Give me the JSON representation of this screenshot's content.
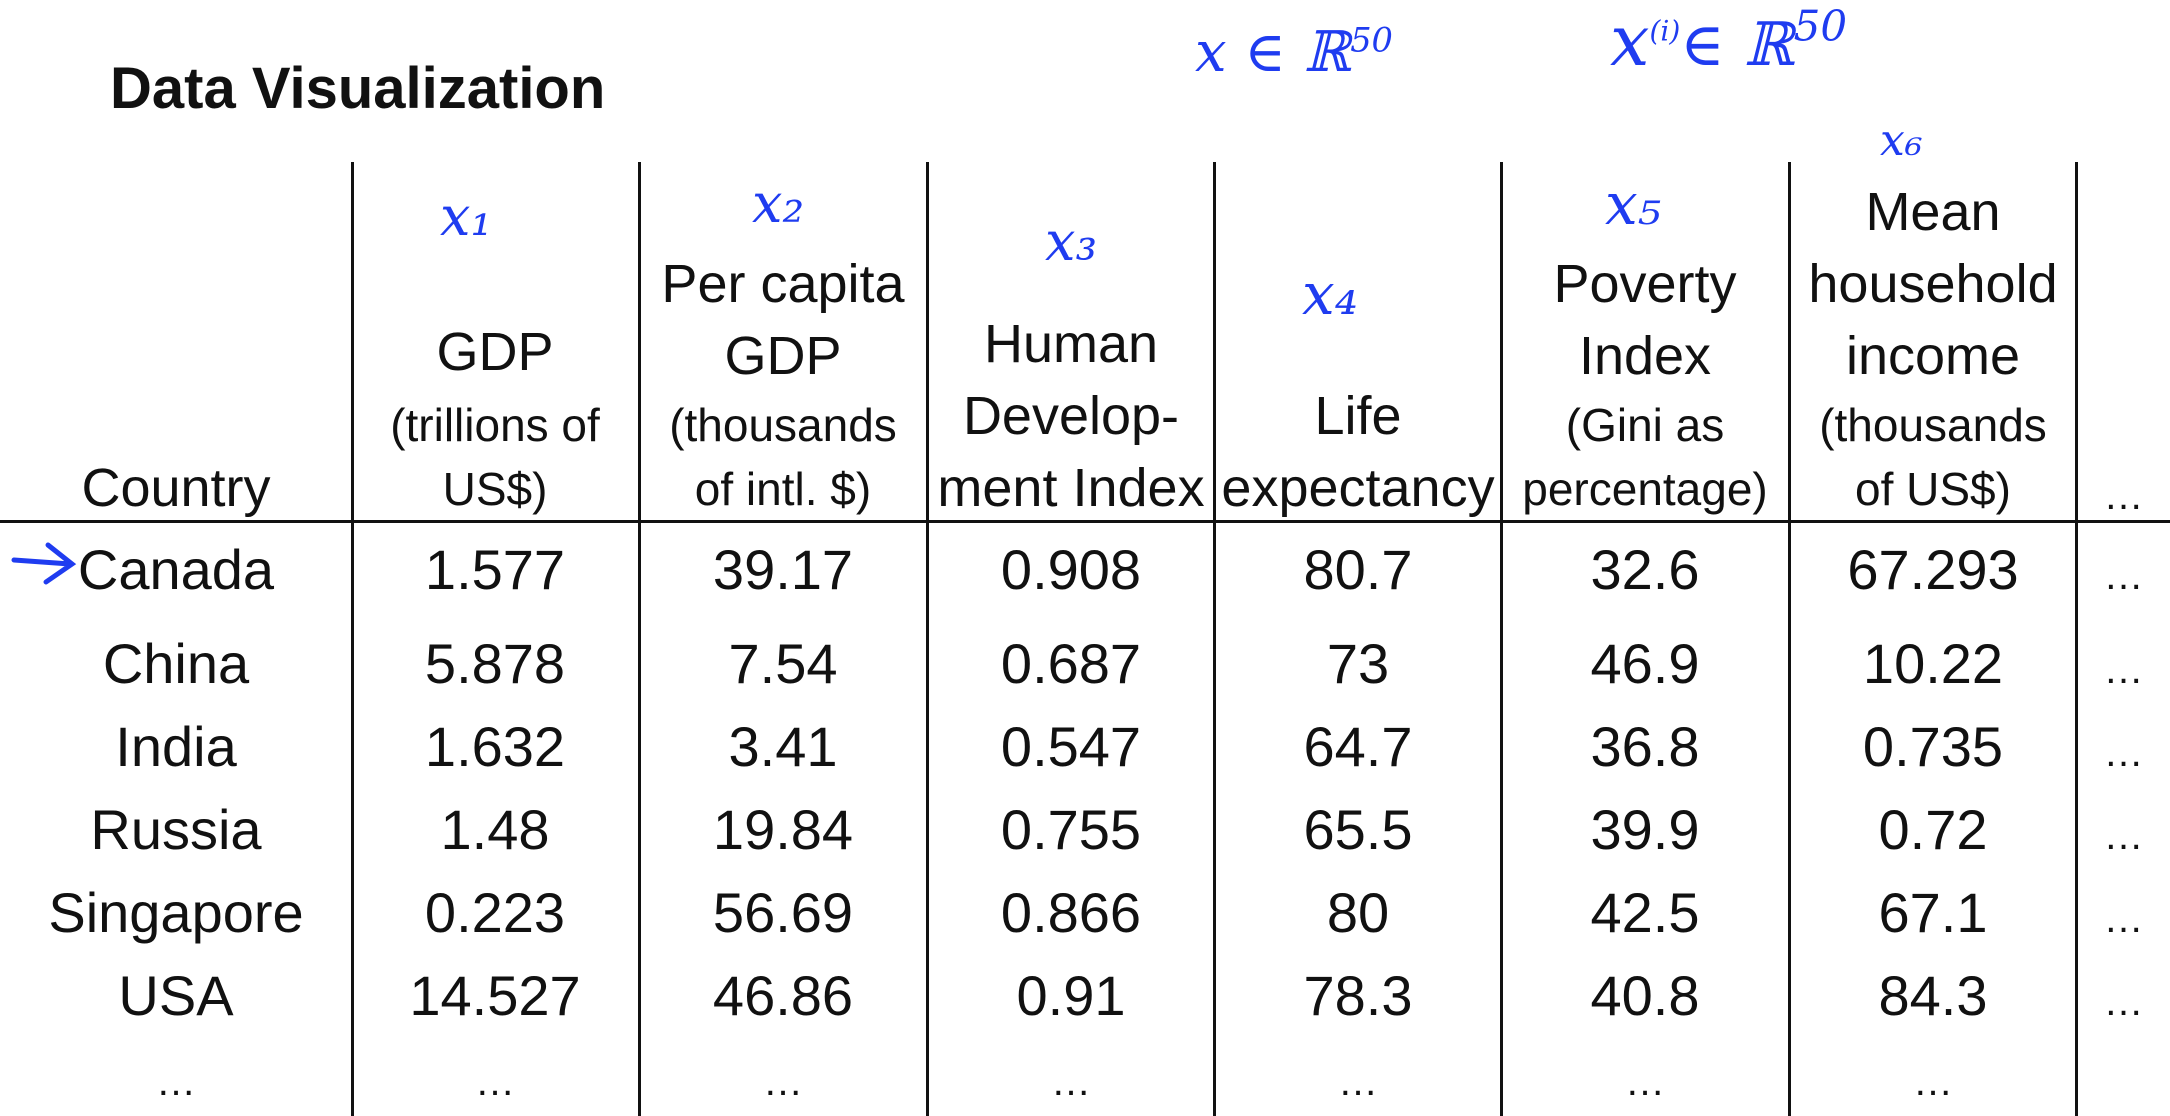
{
  "title": "Data Visualization",
  "annotations": {
    "x_in_R": "x ∈ ℝ",
    "x_in_R_exp": "50",
    "xi_in_R": "x",
    "xi_sup": "(i)",
    "xi_in_R_tail": "∈ ℝ",
    "xi_exp": "50",
    "col_marks": [
      "x₁",
      "x₂",
      "x₃",
      "x₄",
      "x₅",
      "x₆"
    ]
  },
  "headers": {
    "country": "Country",
    "gdp_main": "GDP",
    "gdp_sub1": "(trillions of",
    "gdp_sub2": "US$)",
    "pcgdp_l1": "Per capita",
    "pcgdp_l2": "GDP",
    "pcgdp_sub1": "(thousands",
    "pcgdp_sub2": "of intl. $)",
    "hdi_l1": "Human",
    "hdi_l2": "Develop-",
    "hdi_l3": "ment Index",
    "life_l1": "Life",
    "life_l2": "expectancy",
    "pov_l1": "Poverty",
    "pov_l2": "Index",
    "pov_sub1": "(Gini as",
    "pov_sub2": "percentage)",
    "inc_l1": "Mean",
    "inc_l2": "household",
    "inc_l3": "income",
    "inc_sub1": "(thousands",
    "inc_sub2": "of US$)",
    "more": "…"
  },
  "rows": [
    [
      "Canada",
      "1.577",
      "39.17",
      "0.908",
      "80.7",
      "32.6",
      "67.293",
      "…"
    ],
    [
      "China",
      "5.878",
      "7.54",
      "0.687",
      "73",
      "46.9",
      "10.22",
      "…"
    ],
    [
      "India",
      "1.632",
      "3.41",
      "0.547",
      "64.7",
      "36.8",
      "0.735",
      "…"
    ],
    [
      "Russia",
      "1.48",
      "19.84",
      "0.755",
      "65.5",
      "39.9",
      "0.72",
      "…"
    ],
    [
      "Singapore",
      "0.223",
      "56.69",
      "0.866",
      "80",
      "42.5",
      "67.1",
      "…"
    ],
    [
      "USA",
      "14.527",
      "46.86",
      "0.91",
      "78.3",
      "40.8",
      "84.3",
      "…"
    ],
    [
      "…",
      "…",
      "…",
      "…",
      "…",
      "…",
      "…",
      ""
    ]
  ],
  "colors": {
    "ink": "#1f3cf0",
    "text": "#111111"
  }
}
